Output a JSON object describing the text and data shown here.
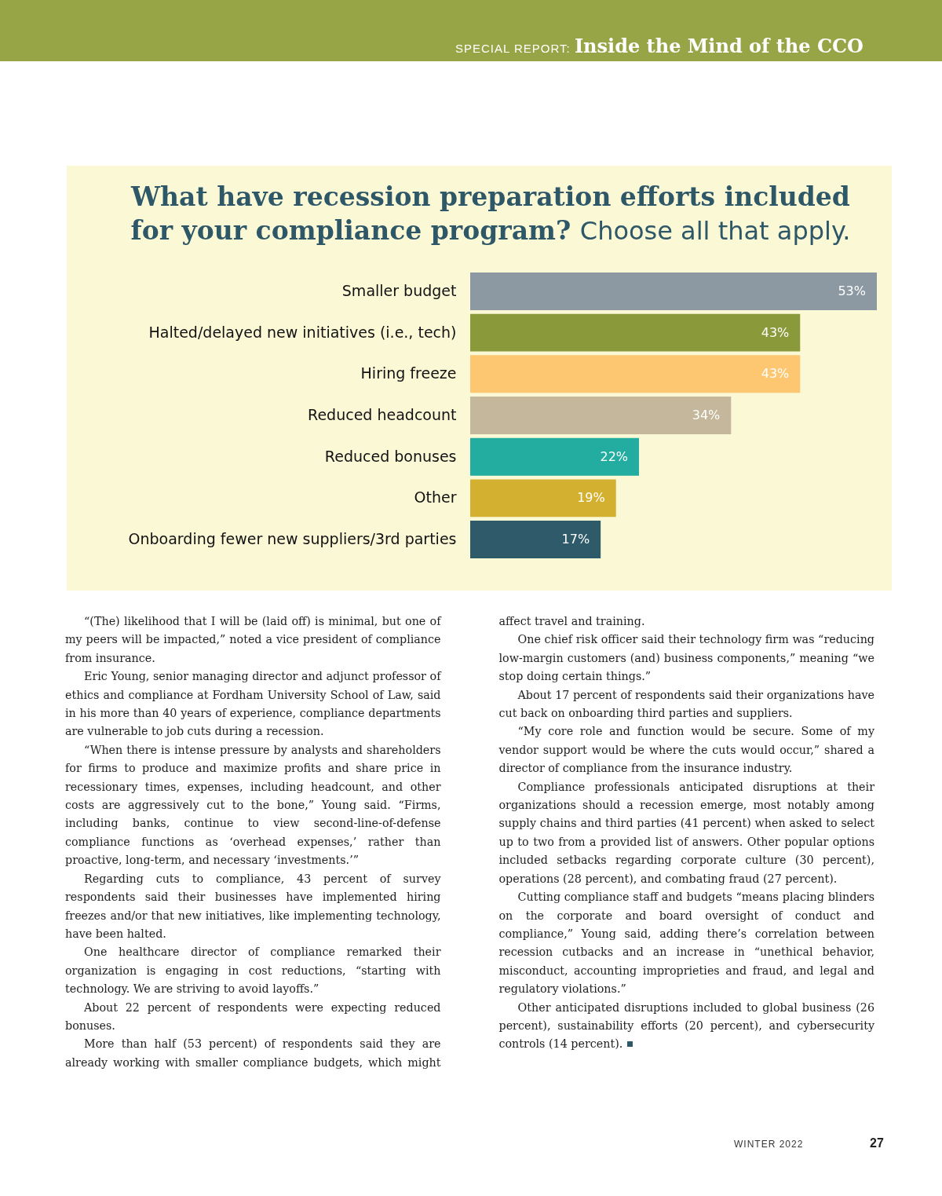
{
  "chart_data": {
    "type": "bar",
    "orientation": "horizontal",
    "title": "What have recession preparation efforts included for your compliance program?",
    "subtitle": "Choose all that apply.",
    "categories": [
      "Smaller budget",
      "Halted/delayed new initiatives (i.e., tech)",
      "Hiring freeze",
      "Reduced headcount",
      "Reduced bonuses",
      "Other",
      "Onboarding fewer new suppliers/3rd parties"
    ],
    "values": [
      53,
      43,
      43,
      34,
      22,
      19,
      17
    ],
    "colors": [
      "#8c99a3",
      "#8a9a3a",
      "#fcc770",
      "#c4b79b",
      "#22ada0",
      "#d3b02f",
      "#2f5a69"
    ],
    "value_labels": [
      "53%",
      "43%",
      "43%",
      "34%",
      "22%",
      "19%",
      "17%"
    ],
    "annotations": [
      "SPECIAL REPORT:",
      "Inside the Mind of the CCO",
      "“(The) likelihood that I will be (laid off) is minimal, but one of my peers will be impacted,” noted a vice president of compliance from insurance.",
      "Eric Young, senior managing director and adjunct professor of ethics and compliance at Fordham University School of Law, said in his more than 40 years of experience, compliance departments are vulnerable to job cuts during a recession.",
      "“When there is intense pressure by analysts and shareholders for firms to produce and maximize profits and share price in recessionary times, expenses, including headcount, and other costs are aggressively cut to the bone,” Young said. “Firms, including banks, continue to view second-line-of-defense compliance functions as ‘overhead expenses,’ rather than proactive, long-term, and necessary ‘investments.’”",
      "Regarding cuts to compliance, 43 percent of survey respondents said their businesses have implemented hiring freezes and/or that new initiatives, like implementing technology, have been halted.",
      "One healthcare director of compliance remarked their organization is engaging in cost reductions, “starting with technology. We are striving to avoid layoffs.”",
      "About 22 percent of respondents were expecting reduced bonuses.",
      "More than half (53 percent) of respondents said they are already working with smaller compliance budgets, which might affect travel and training.",
      "One chief risk officer said their technology firm was “reducing low-margin customers (and) business components,” meaning “we stop doing certain things.”",
      "About 17 percent of respondents said their organizations have cut back on onboarding third parties and suppliers.",
      "“My core role and function would be secure. Some of my vendor support would be where the cuts would occur,” shared a director of compliance from the insurance industry.",
      "Compliance professionals anticipated disruptions at their organizations should a recession emerge, most notably among supply chains and third parties (41 percent) when asked to select up to two from a provided list of answers. Other popular options included setbacks regarding corporate culture (30 percent), operations (28 percent), and combating fraud (27 percent).",
      "Cutting compliance staff and budgets “means placing blinders on the corporate and board oversight of conduct and compliance,” Young said, adding there’s correlation between recession cutbacks and an increase in “unethical behavior, misconduct, accounting improprieties and fraud, and legal and regulatory violations.”",
      "Other anticipated disruptions included to global business (26 percent), sustainability efforts (20 percent), and cybersecurity controls (14 percent).",
      "WINTER 2022",
      "27"
    ]
  }
}
